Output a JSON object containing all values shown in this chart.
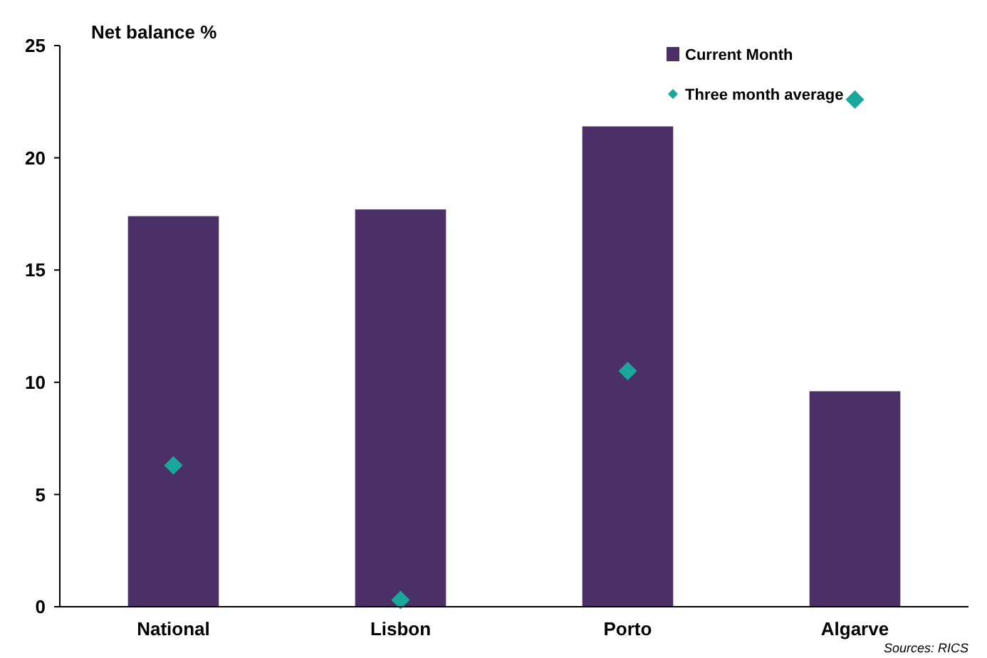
{
  "chart_data": {
    "type": "bar",
    "ylabel": "Net balance %",
    "categories": [
      "National",
      "Lisbon",
      "Porto",
      "Algarve"
    ],
    "series": [
      {
        "name": "Current Month",
        "color": "#4b3068",
        "values": [
          17.4,
          17.7,
          21.4,
          9.6
        ]
      },
      {
        "name": "Three month average",
        "type": "scatter",
        "marker": "diamond",
        "color": "#1aa79b",
        "x": [
          "National",
          "Lisbon",
          "Porto",
          "Algarve"
        ],
        "values": [
          6.3,
          0.3,
          10.5,
          22.6
        ]
      }
    ],
    "ylim": [
      0,
      25
    ],
    "yticks": [
      0,
      5,
      10,
      15,
      20,
      25
    ],
    "grid": false,
    "legend": "top right",
    "annotations": [
      "Sources: RICS"
    ]
  }
}
